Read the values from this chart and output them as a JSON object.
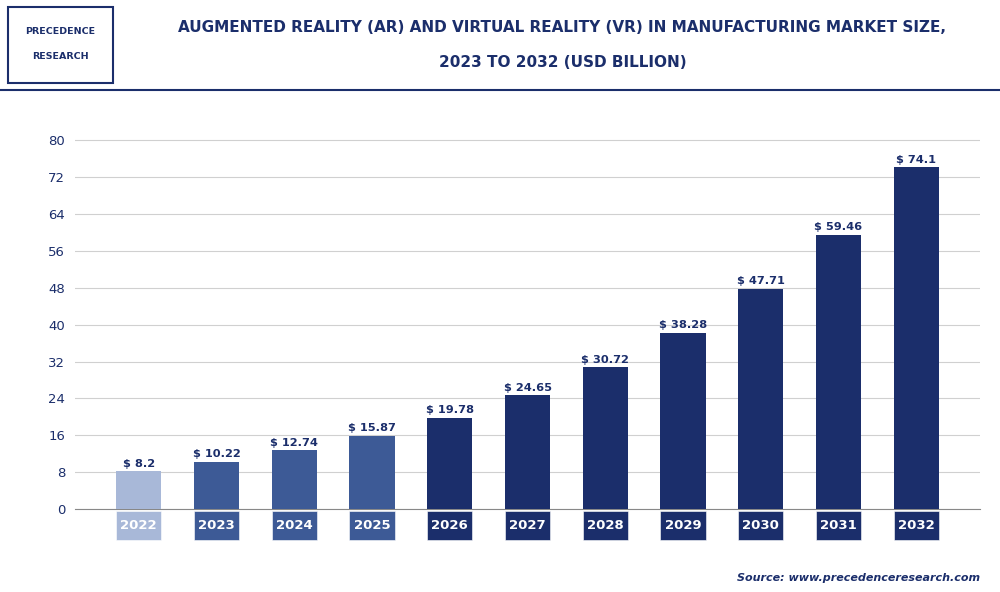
{
  "years": [
    "2022",
    "2023",
    "2024",
    "2025",
    "2026",
    "2027",
    "2028",
    "2029",
    "2030",
    "2031",
    "2032"
  ],
  "values": [
    8.2,
    10.22,
    12.74,
    15.87,
    19.78,
    24.65,
    30.72,
    38.28,
    47.71,
    59.46,
    74.1
  ],
  "labels": [
    "$ 8.2",
    "$ 10.22",
    "$ 12.74",
    "$ 15.87",
    "$ 19.78",
    "$ 24.65",
    "$ 30.72",
    "$ 38.28",
    "$ 47.71",
    "$ 59.46",
    "$ 74.1"
  ],
  "bar_colors": [
    "#a8b8d8",
    "#3d5a96",
    "#3d5a96",
    "#3d5a96",
    "#1b2e6b",
    "#1b2e6b",
    "#1b2e6b",
    "#1b2e6b",
    "#1b2e6b",
    "#1b2e6b",
    "#1b2e6b"
  ],
  "xtick_colors": [
    "#a8b8d8",
    "#3d5a96",
    "#3d5a96",
    "#3d5a96",
    "#1b2e6b",
    "#1b2e6b",
    "#1b2e6b",
    "#1b2e6b",
    "#1b2e6b",
    "#1b2e6b",
    "#1b2e6b"
  ],
  "title_line1": "AUGMENTED REALITY (AR) AND VIRTUAL REALITY (VR) IN MANUFACTURING MARKET SIZE,",
  "title_line2": "2023 TO 2032 (USD BILLION)",
  "yticks": [
    0,
    8,
    16,
    24,
    32,
    40,
    48,
    56,
    64,
    72,
    80
  ],
  "ylim": [
    0,
    86
  ],
  "background_color": "#ffffff",
  "plot_bg_color": "#ffffff",
  "grid_color": "#d0d0d0",
  "source_text": "Source: www.precedenceresearch.com",
  "logo_text_line1": "PRECEDENCE",
  "logo_text_line2": "RESEARCH",
  "title_color": "#1b2e6b",
  "bar_label_color": "#1b2e6b",
  "tick_label_color": "#1b2e6b",
  "header_bg": "#ffffff",
  "header_border_color": "#1b2e6b"
}
